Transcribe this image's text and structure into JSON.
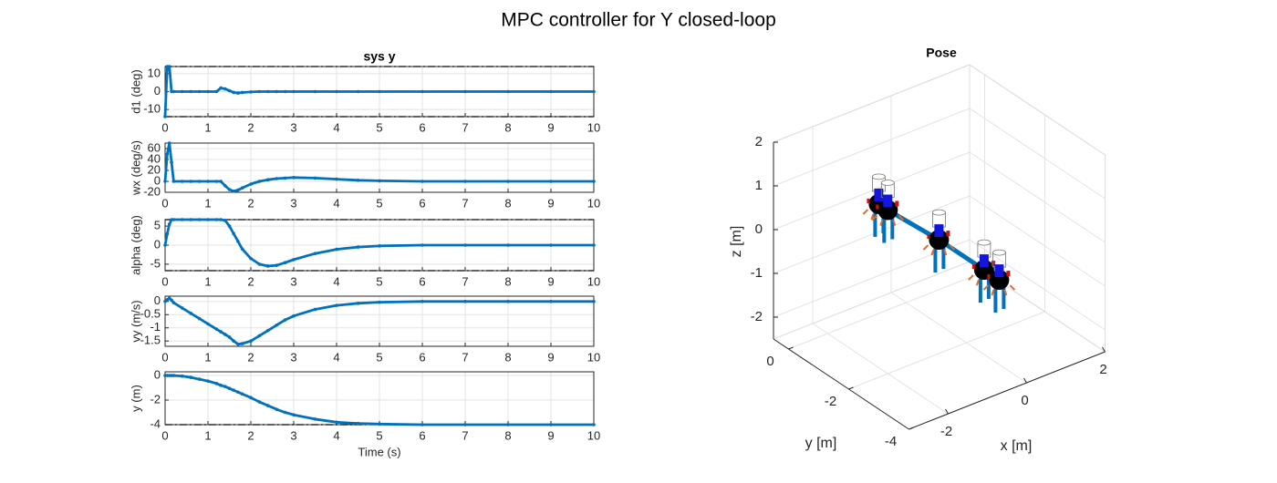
{
  "title": "MPC controller for Y closed-loop",
  "chart_data": [
    {
      "type": "line",
      "title": "sys y",
      "ylabel": "d1 (deg)",
      "color": "#0072bd",
      "grid": true,
      "x": [
        0,
        0.05,
        0.1,
        0.15,
        0.2,
        0.4,
        0.6,
        0.8,
        1.0,
        1.2,
        1.3,
        1.4,
        1.5,
        1.6,
        1.7,
        1.8,
        2.0,
        2.2,
        2.4,
        2.6,
        2.8,
        3.0,
        3.5,
        4,
        4.5,
        5,
        6,
        7,
        8,
        9,
        10
      ],
      "values": [
        -14,
        14,
        14,
        0,
        0,
        0,
        0,
        0,
        0,
        0,
        2,
        1.5,
        0.5,
        -0.5,
        -0.8,
        -0.5,
        -0.2,
        0,
        0,
        0,
        0,
        0,
        0,
        0,
        0,
        0,
        0,
        0,
        0,
        0,
        0
      ],
      "reference_lines": [
        -14,
        14
      ],
      "xlim": [
        0,
        10
      ],
      "xticks": [
        0,
        1,
        2,
        3,
        4,
        5,
        6,
        7,
        8,
        9,
        10
      ],
      "ylim": [
        -14,
        14
      ],
      "yticks": [
        -10,
        0,
        10
      ]
    },
    {
      "type": "line",
      "ylabel": "wx (deg/s)",
      "color": "#0072bd",
      "grid": true,
      "x": [
        0,
        0.05,
        0.1,
        0.15,
        0.2,
        0.4,
        0.6,
        0.8,
        1.0,
        1.2,
        1.3,
        1.4,
        1.5,
        1.6,
        1.7,
        1.8,
        2.0,
        2.2,
        2.4,
        2.6,
        2.8,
        3.0,
        3.5,
        4,
        4.5,
        5,
        6,
        7,
        8,
        9,
        10
      ],
      "values": [
        0,
        50,
        70,
        35,
        0,
        0,
        0,
        0,
        0,
        0,
        0,
        -8,
        -15,
        -18,
        -16,
        -12,
        -5,
        0,
        3,
        5,
        6,
        7,
        6,
        4,
        2,
        1,
        0,
        0,
        0,
        0,
        0
      ],
      "reference_lines": [],
      "xlim": [
        0,
        10
      ],
      "xticks": [
        0,
        1,
        2,
        3,
        4,
        5,
        6,
        7,
        8,
        9,
        10
      ],
      "ylim": [
        -20,
        70
      ],
      "yticks": [
        -20,
        0,
        20,
        40,
        60
      ]
    },
    {
      "type": "line",
      "ylabel": "alpha (deg)",
      "color": "#0072bd",
      "grid": true,
      "x": [
        0,
        0.05,
        0.1,
        0.15,
        0.2,
        0.4,
        0.6,
        0.8,
        1.0,
        1.2,
        1.3,
        1.4,
        1.5,
        1.6,
        1.7,
        1.8,
        2.0,
        2.2,
        2.4,
        2.6,
        2.8,
        3.0,
        3.5,
        4,
        4.5,
        5,
        6,
        7,
        8,
        9,
        10
      ],
      "values": [
        0,
        3,
        5.5,
        6.7,
        6.7,
        6.7,
        6.7,
        6.7,
        6.7,
        6.7,
        6.7,
        6.5,
        5,
        3,
        1,
        -1,
        -3.5,
        -5,
        -5.5,
        -5.3,
        -4.6,
        -3.8,
        -2.2,
        -1.1,
        -0.5,
        -0.2,
        0,
        0,
        0,
        0,
        0
      ],
      "reference_lines": [
        -6.7,
        6.7
      ],
      "xlim": [
        0,
        10
      ],
      "xticks": [
        0,
        1,
        2,
        3,
        4,
        5,
        6,
        7,
        8,
        9,
        10
      ],
      "ylim": [
        -6.7,
        6.7
      ],
      "yticks": [
        -5,
        0,
        5
      ]
    },
    {
      "type": "line",
      "ylabel": "vy (m/s)",
      "color": "#0072bd",
      "grid": true,
      "x": [
        0,
        0.05,
        0.1,
        0.15,
        0.2,
        0.4,
        0.6,
        0.8,
        1.0,
        1.2,
        1.3,
        1.4,
        1.5,
        1.6,
        1.7,
        1.8,
        2.0,
        2.2,
        2.4,
        2.6,
        2.8,
        3.0,
        3.5,
        4,
        4.5,
        5,
        6,
        7,
        8,
        9,
        10
      ],
      "values": [
        0,
        0.07,
        0.12,
        0.05,
        -0.05,
        -0.25,
        -0.45,
        -0.65,
        -0.85,
        -1.05,
        -1.15,
        -1.25,
        -1.35,
        -1.5,
        -1.62,
        -1.6,
        -1.5,
        -1.3,
        -1.1,
        -0.9,
        -0.7,
        -0.55,
        -0.3,
        -0.15,
        -0.07,
        -0.03,
        0,
        0,
        0,
        0,
        0
      ],
      "reference_lines": [],
      "xlim": [
        0,
        10
      ],
      "xticks": [
        0,
        1,
        2,
        3,
        4,
        5,
        6,
        7,
        8,
        9,
        10
      ],
      "ylim": [
        -1.7,
        0.2
      ],
      "yticks": [
        -1.5,
        -1,
        -0.5,
        0
      ]
    },
    {
      "type": "line",
      "ylabel": "y (m)",
      "xlabel": "Time (s)",
      "color": "#0072bd",
      "grid": true,
      "x": [
        0,
        0.05,
        0.1,
        0.15,
        0.2,
        0.4,
        0.6,
        0.8,
        1.0,
        1.2,
        1.3,
        1.4,
        1.5,
        1.6,
        1.7,
        1.8,
        2.0,
        2.2,
        2.4,
        2.6,
        2.8,
        3.0,
        3.5,
        4,
        4.5,
        5,
        6,
        7,
        8,
        9,
        10
      ],
      "values": [
        0,
        0,
        0,
        0,
        0,
        -0.05,
        -0.15,
        -0.3,
        -0.45,
        -0.65,
        -0.8,
        -0.9,
        -1.05,
        -1.2,
        -1.35,
        -1.5,
        -1.8,
        -2.15,
        -2.45,
        -2.75,
        -3.0,
        -3.2,
        -3.55,
        -3.8,
        -3.9,
        -3.95,
        -4,
        -4,
        -4,
        -4,
        -4
      ],
      "reference_lines": [
        -4
      ],
      "xlim": [
        0,
        10
      ],
      "xticks": [
        0,
        1,
        2,
        3,
        4,
        5,
        6,
        7,
        8,
        9,
        10
      ],
      "ylim": [
        -4,
        0.3
      ],
      "yticks": [
        -4,
        -2,
        0
      ]
    },
    {
      "type": "pose3d",
      "title": "Pose",
      "xlabel": "x [m]",
      "ylabel": "y [m]",
      "zlabel": "z [m]",
      "color": "#0072bd",
      "grid": true,
      "x": [
        -0.7,
        -0.7,
        -0.7,
        -0.7,
        -0.7
      ],
      "y": [
        0,
        -0.3,
        -2,
        -3.5,
        -4
      ],
      "z": [
        0,
        0,
        0.1,
        0.1,
        0.1
      ],
      "xlim": [
        -3,
        2
      ],
      "xticks": [
        -2,
        0,
        2
      ],
      "ylim": [
        -4,
        0.5
      ],
      "yticks": [
        -4,
        -2,
        0
      ],
      "zlim": [
        -2.5,
        2
      ],
      "zticks": [
        -2,
        -1,
        0,
        1,
        2
      ]
    }
  ]
}
